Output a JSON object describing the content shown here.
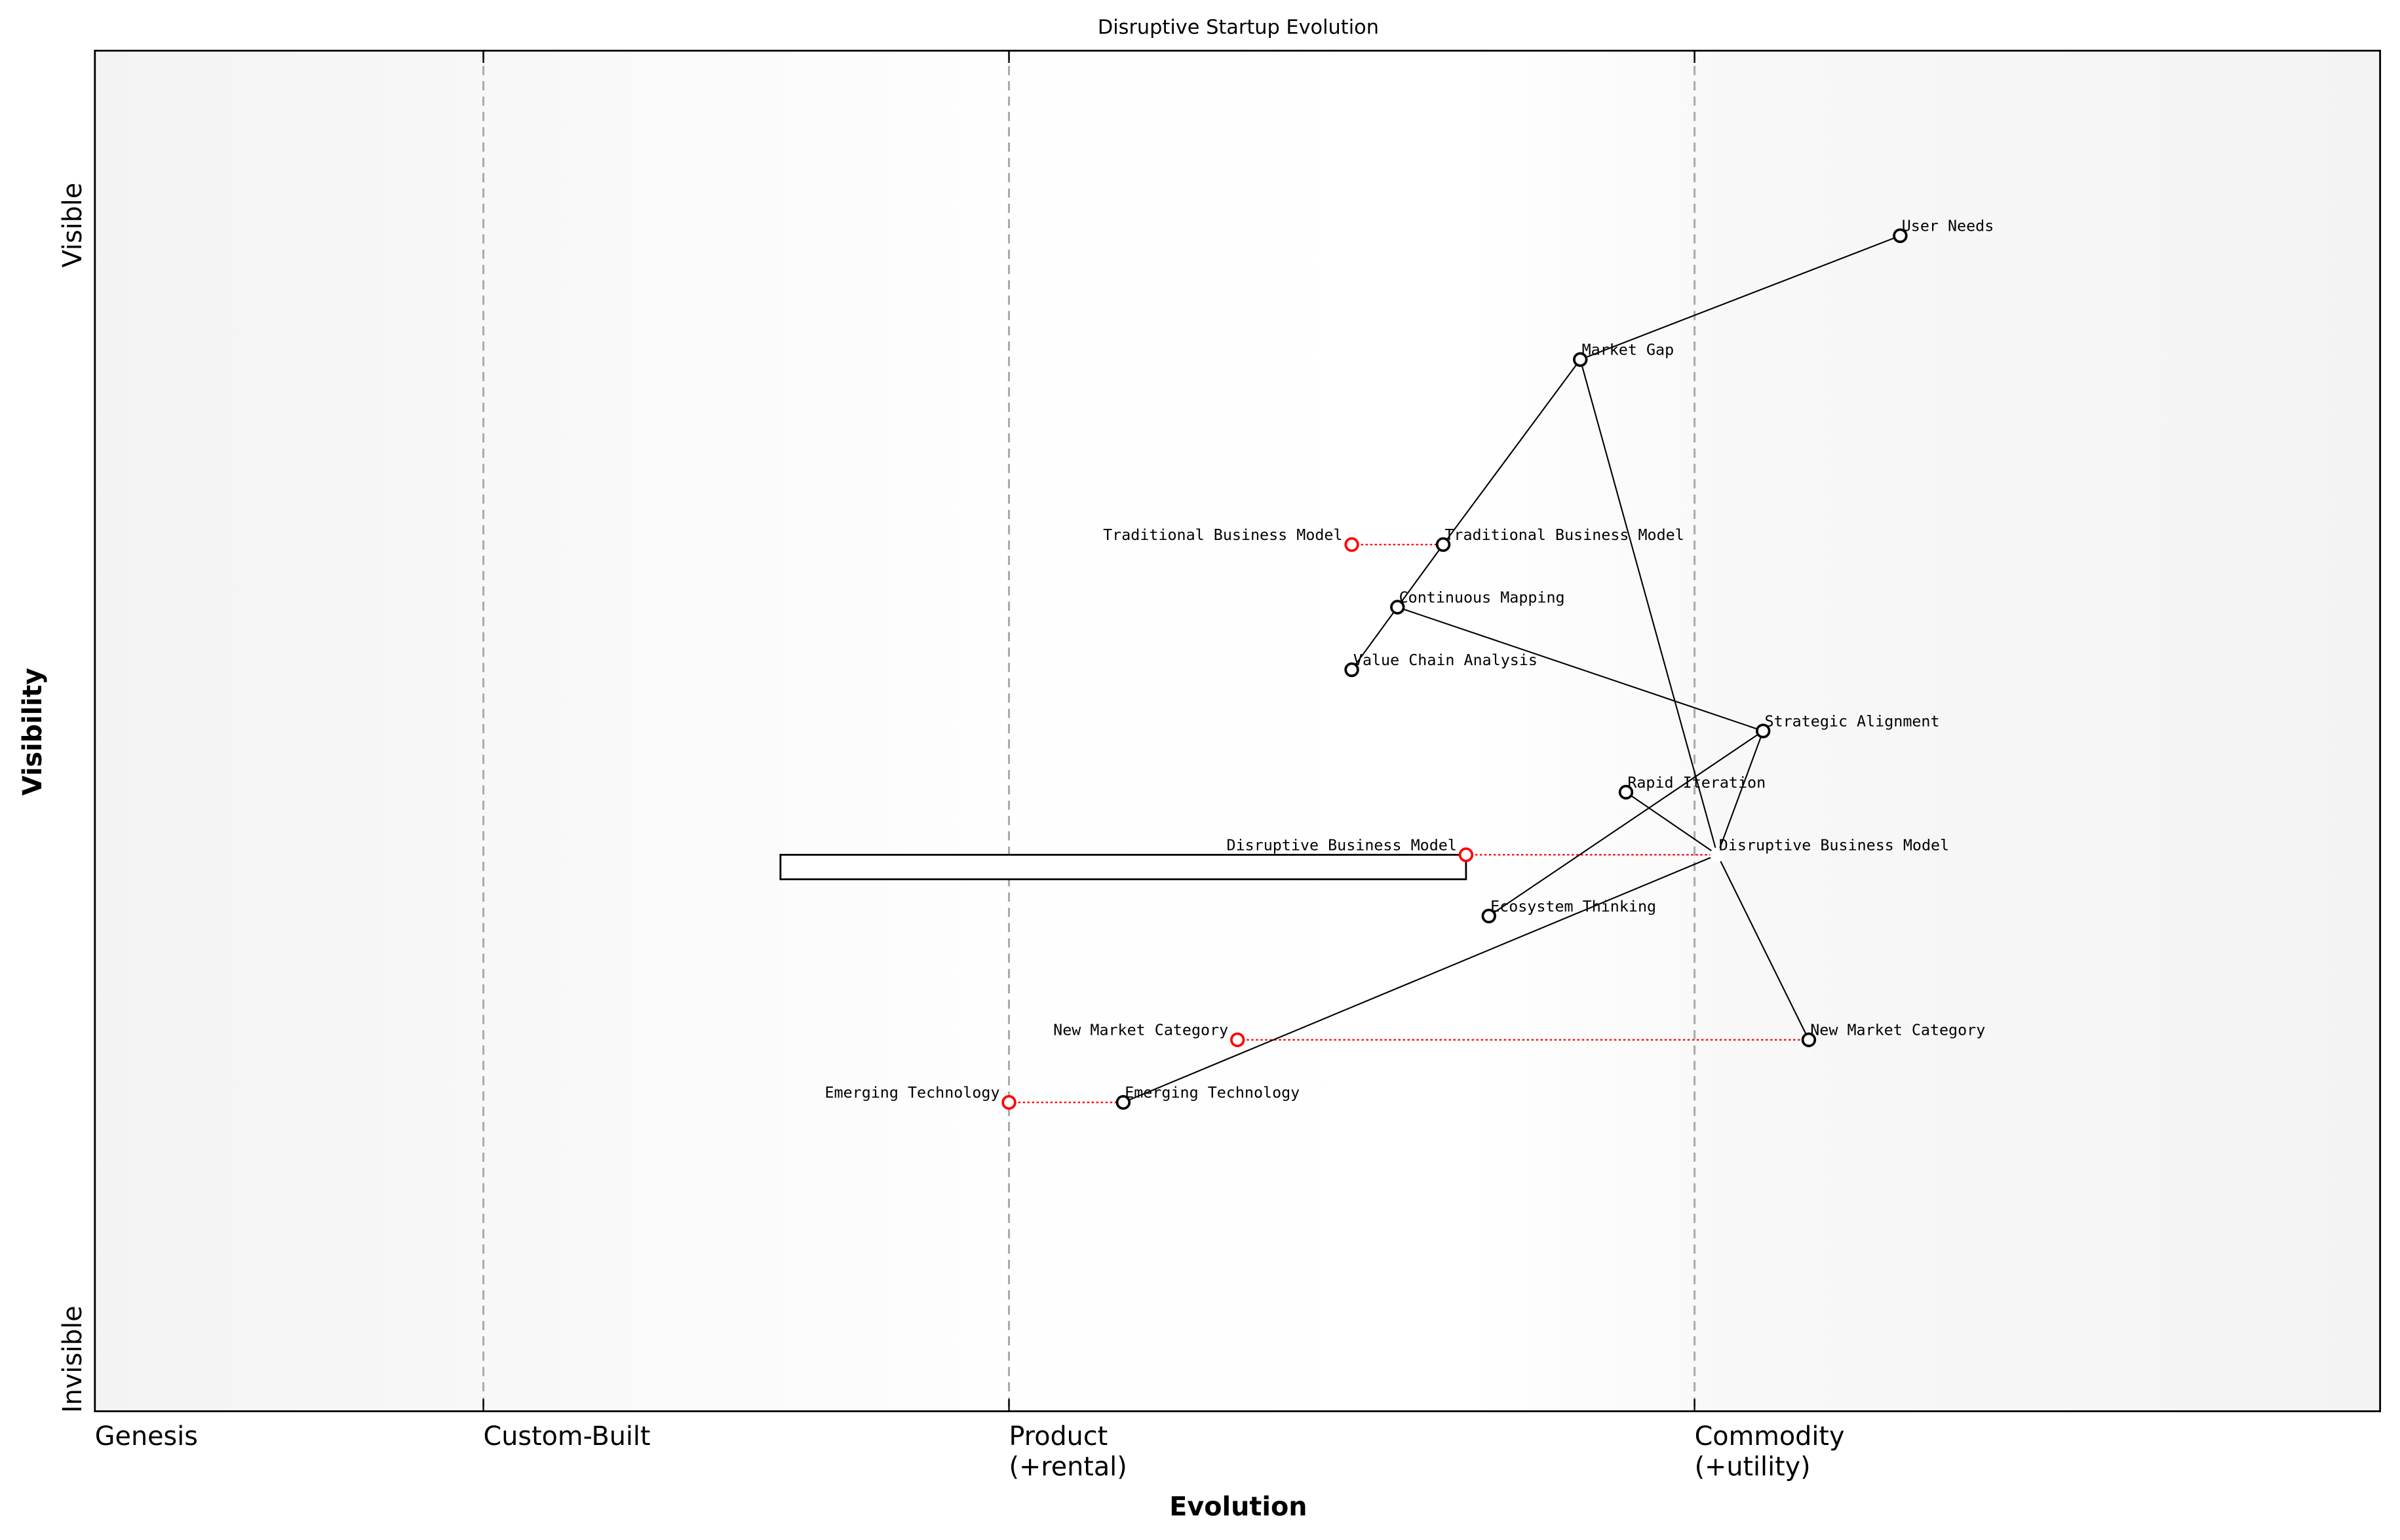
{
  "chart_data": {
    "type": "scatter",
    "title": "Disruptive Startup Evolution",
    "xlabel": "Evolution",
    "ylabel": "Visibility",
    "xlim": [
      0,
      1
    ],
    "ylim": [
      0,
      1
    ],
    "grid": false,
    "stages": [
      {
        "label": "Genesis",
        "position": 0.0
      },
      {
        "label": "Custom-Built",
        "position": 0.17
      },
      {
        "label": "Product\n(+rental)",
        "position": 0.4
      },
      {
        "label": "Commodity\n(+utility)",
        "position": 0.7
      }
    ],
    "visibility_labels": {
      "top": "Visible",
      "bottom": "Invisible"
    },
    "colors": {
      "component": "#000000",
      "evolution_origin": "#ff0000",
      "evolve_line": "#ff0000",
      "stage_line": "#aaaaaa"
    },
    "components": [
      {
        "name": "User Needs",
        "evolution": 0.79,
        "visibility": 0.864
      },
      {
        "name": "Market Gap",
        "evolution": 0.65,
        "visibility": 0.773
      },
      {
        "name": "Traditional Business Model",
        "evolution": 0.59,
        "visibility": 0.637
      },
      {
        "name": "Continuous Mapping",
        "evolution": 0.57,
        "visibility": 0.591
      },
      {
        "name": "Value Chain Analysis",
        "evolution": 0.55,
        "visibility": 0.545
      },
      {
        "name": "Strategic Alignment",
        "evolution": 0.73,
        "visibility": 0.5
      },
      {
        "name": "Rapid Iteration",
        "evolution": 0.67,
        "visibility": 0.455
      },
      {
        "name": "Disruptive Business Model",
        "evolution": 0.71,
        "visibility": 0.409,
        "hidden_marker": true
      },
      {
        "name": "Ecosystem Thinking",
        "evolution": 0.61,
        "visibility": 0.364
      },
      {
        "name": "New Market Category",
        "evolution": 0.75,
        "visibility": 0.273
      },
      {
        "name": "Emerging Technology",
        "evolution": 0.45,
        "visibility": 0.227
      }
    ],
    "evolutions": [
      {
        "name": "Traditional Business Model",
        "from": 0.55,
        "to": 0.59,
        "visibility": 0.637
      },
      {
        "name": "Disruptive Business Model",
        "from": 0.6,
        "to": 0.71,
        "visibility": 0.409
      },
      {
        "name": "New Market Category",
        "from": 0.5,
        "to": 0.75,
        "visibility": 0.273
      },
      {
        "name": "Emerging Technology",
        "from": 0.4,
        "to": 0.45,
        "visibility": 0.227
      }
    ],
    "links": [
      [
        "User Needs",
        "Market Gap"
      ],
      [
        "Market Gap",
        "Traditional Business Model"
      ],
      [
        "Traditional Business Model",
        "Continuous Mapping"
      ],
      [
        "Continuous Mapping",
        "Value Chain Analysis"
      ],
      [
        "Market Gap",
        "Disruptive Business Model"
      ],
      [
        "Disruptive Business Model",
        "New Market Category"
      ],
      [
        "Continuous Mapping",
        "Strategic Alignment"
      ],
      [
        "Strategic Alignment",
        "Ecosystem Thinking"
      ],
      [
        "Strategic Alignment",
        "Disruptive Business Model"
      ],
      [
        "Rapid Iteration",
        "Disruptive Business Model"
      ],
      [
        "Disruptive Business Model",
        "Emerging Technology"
      ]
    ],
    "inertia": [
      {
        "component": "Disruptive Business Model",
        "from": 0.3,
        "to": 0.6
      }
    ]
  }
}
